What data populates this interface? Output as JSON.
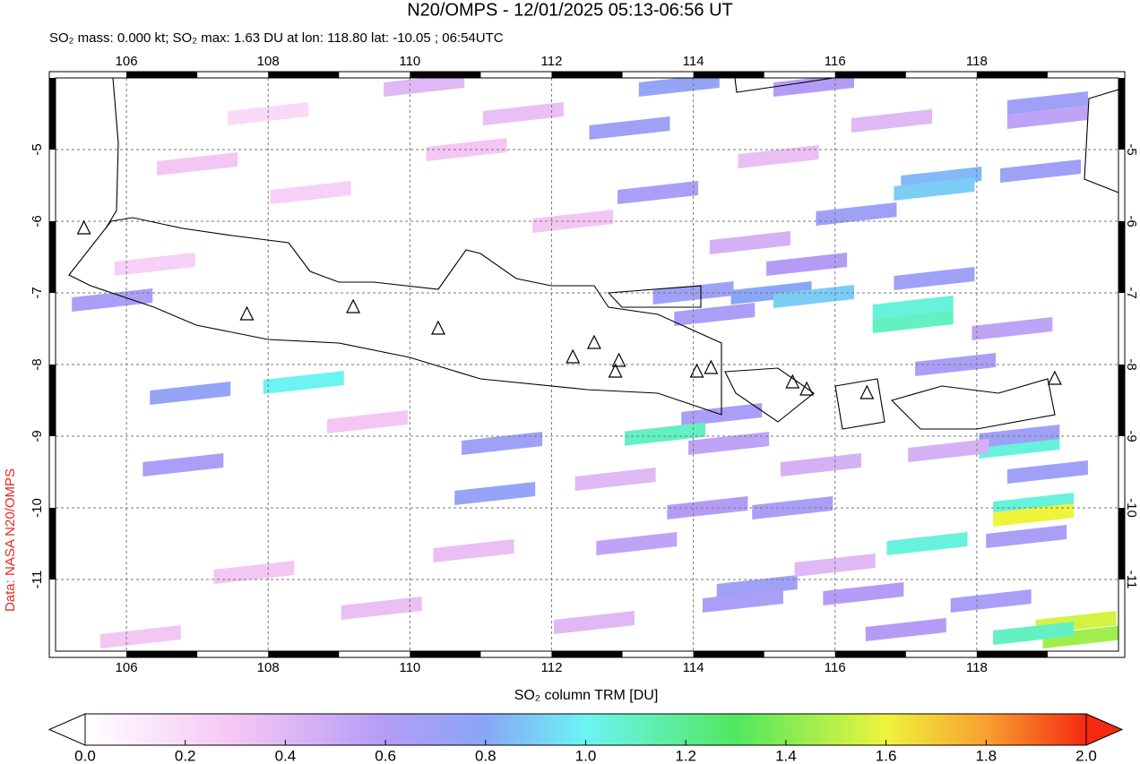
{
  "header": {
    "title": "N20/OMPS - 12/01/2025 05:13-06:56 UT",
    "subtitle": "SO₂ mass: 0.000 kt; SO₂ max: 1.63 DU at lon: 118.80 lat: -10.05 ; 06:54UTC"
  },
  "credit": "Data: NASA N20/OMPS",
  "map": {
    "xlim": [
      105,
      120
    ],
    "ylim": [
      -12,
      -4
    ],
    "xticks": [
      106,
      108,
      110,
      112,
      114,
      116,
      118
    ],
    "yticks": [
      -5,
      -6,
      -7,
      -8,
      -9,
      -10,
      -11
    ],
    "grid": true,
    "volcanoes": [
      {
        "lon": 105.4,
        "lat": -6.1
      },
      {
        "lon": 107.7,
        "lat": -7.3
      },
      {
        "lon": 109.2,
        "lat": -7.2
      },
      {
        "lon": 110.4,
        "lat": -7.5
      },
      {
        "lon": 112.3,
        "lat": -7.9
      },
      {
        "lon": 112.6,
        "lat": -7.7
      },
      {
        "lon": 112.95,
        "lat": -7.95
      },
      {
        "lon": 112.9,
        "lat": -8.1
      },
      {
        "lon": 114.05,
        "lat": -8.1
      },
      {
        "lon": 114.25,
        "lat": -8.05
      },
      {
        "lon": 115.4,
        "lat": -8.25
      },
      {
        "lon": 115.6,
        "lat": -8.35
      },
      {
        "lon": 116.45,
        "lat": -8.4
      },
      {
        "lon": 119.1,
        "lat": -8.2
      }
    ],
    "cells": [
      {
        "lon": 113.8,
        "lat": -4.1,
        "value": 0.75
      },
      {
        "lon": 115.7,
        "lat": -4.1,
        "value": 0.6
      },
      {
        "lon": 119.0,
        "lat": -4.35,
        "value": 0.7
      },
      {
        "lon": 119.0,
        "lat": -4.55,
        "value": 0.55
      },
      {
        "lon": 118.9,
        "lat": -5.3,
        "value": 0.7
      },
      {
        "lon": 117.5,
        "lat": -5.4,
        "value": 0.85
      },
      {
        "lon": 117.4,
        "lat": -5.55,
        "value": 0.9
      },
      {
        "lon": 116.3,
        "lat": -5.9,
        "value": 0.7
      },
      {
        "lon": 113.5,
        "lat": -5.6,
        "value": 0.65
      },
      {
        "lon": 113.1,
        "lat": -4.7,
        "value": 0.7
      },
      {
        "lon": 114.0,
        "lat": -7.0,
        "value": 0.7
      },
      {
        "lon": 114.3,
        "lat": -7.3,
        "value": 0.65
      },
      {
        "lon": 115.1,
        "lat": -7.0,
        "value": 0.8
      },
      {
        "lon": 115.7,
        "lat": -7.05,
        "value": 0.9
      },
      {
        "lon": 117.1,
        "lat": -7.2,
        "value": 1.05
      },
      {
        "lon": 117.1,
        "lat": -7.4,
        "value": 1.1
      },
      {
        "lon": 117.4,
        "lat": -6.8,
        "value": 0.7
      },
      {
        "lon": 118.5,
        "lat": -7.5,
        "value": 0.55
      },
      {
        "lon": 117.7,
        "lat": -8.0,
        "value": 0.65
      },
      {
        "lon": 115.6,
        "lat": -6.6,
        "value": 0.6
      },
      {
        "lon": 114.4,
        "lat": -8.7,
        "value": 0.65
      },
      {
        "lon": 113.6,
        "lat": -8.97,
        "value": 1.1
      },
      {
        "lon": 114.5,
        "lat": -9.1,
        "value": 0.55
      },
      {
        "lon": 111.3,
        "lat": -9.1,
        "value": 0.7
      },
      {
        "lon": 111.2,
        "lat": -9.8,
        "value": 0.75
      },
      {
        "lon": 114.2,
        "lat": -10.0,
        "value": 0.6
      },
      {
        "lon": 115.4,
        "lat": -10.0,
        "value": 0.65
      },
      {
        "lon": 118.6,
        "lat": -9.15,
        "value": 1.05
      },
      {
        "lon": 118.6,
        "lat": -9.0,
        "value": 0.7
      },
      {
        "lon": 118.8,
        "lat": -9.95,
        "value": 1.05
      },
      {
        "lon": 118.8,
        "lat": -10.1,
        "value": 1.6
      },
      {
        "lon": 119.0,
        "lat": -9.5,
        "value": 0.7
      },
      {
        "lon": 117.3,
        "lat": -10.5,
        "value": 1.05
      },
      {
        "lon": 118.7,
        "lat": -10.4,
        "value": 0.65
      },
      {
        "lon": 113.2,
        "lat": -10.5,
        "value": 0.55
      },
      {
        "lon": 114.9,
        "lat": -11.1,
        "value": 0.7
      },
      {
        "lon": 114.7,
        "lat": -11.3,
        "value": 0.65
      },
      {
        "lon": 116.4,
        "lat": -11.2,
        "value": 0.6
      },
      {
        "lon": 119.4,
        "lat": -11.6,
        "value": 1.55
      },
      {
        "lon": 119.5,
        "lat": -11.8,
        "value": 1.45
      },
      {
        "lon": 118.8,
        "lat": -11.75,
        "value": 1.1
      },
      {
        "lon": 118.2,
        "lat": -11.3,
        "value": 0.65
      },
      {
        "lon": 117.0,
        "lat": -11.7,
        "value": 0.6
      },
      {
        "lon": 108.5,
        "lat": -8.25,
        "value": 1.0
      },
      {
        "lon": 106.9,
        "lat": -8.4,
        "value": 0.75
      },
      {
        "lon": 106.8,
        "lat": -9.4,
        "value": 0.65
      },
      {
        "lon": 105.8,
        "lat": -7.1,
        "value": 0.65
      },
      {
        "lon": 110.2,
        "lat": -4.1,
        "value": 0.4
      },
      {
        "lon": 107.0,
        "lat": -5.2,
        "value": 0.3
      },
      {
        "lon": 108.6,
        "lat": -5.6,
        "value": 0.25
      },
      {
        "lon": 110.8,
        "lat": -5.0,
        "value": 0.3
      },
      {
        "lon": 111.6,
        "lat": -4.5,
        "value": 0.35
      },
      {
        "lon": 112.3,
        "lat": -6.0,
        "value": 0.3
      },
      {
        "lon": 109.4,
        "lat": -8.8,
        "value": 0.3
      },
      {
        "lon": 110.9,
        "lat": -10.6,
        "value": 0.35
      },
      {
        "lon": 107.8,
        "lat": -10.9,
        "value": 0.3
      },
      {
        "lon": 109.6,
        "lat": -11.4,
        "value": 0.35
      },
      {
        "lon": 112.6,
        "lat": -11.6,
        "value": 0.4
      },
      {
        "lon": 106.2,
        "lat": -11.8,
        "value": 0.3
      },
      {
        "lon": 115.8,
        "lat": -9.4,
        "value": 0.45
      },
      {
        "lon": 116.8,
        "lat": -4.6,
        "value": 0.4
      },
      {
        "lon": 115.2,
        "lat": -5.1,
        "value": 0.35
      },
      {
        "lon": 114.8,
        "lat": -6.3,
        "value": 0.45
      },
      {
        "lon": 112.9,
        "lat": -9.6,
        "value": 0.4
      },
      {
        "lon": 117.6,
        "lat": -9.2,
        "value": 0.45
      },
      {
        "lon": 116.0,
        "lat": -10.8,
        "value": 0.4
      },
      {
        "lon": 108.0,
        "lat": -4.5,
        "value": 0.2
      },
      {
        "lon": 106.4,
        "lat": -6.6,
        "value": 0.25
      }
    ]
  },
  "colorbar": {
    "label": "SO₂ column TRM [DU]",
    "lim": [
      0,
      2
    ],
    "ticks": [
      {
        "value": 0,
        "label": "0.0"
      },
      {
        "value": 0.2,
        "label": "0.2"
      },
      {
        "value": 0.4,
        "label": "0.4"
      },
      {
        "value": 0.6,
        "label": "0.6"
      },
      {
        "value": 0.8,
        "label": "0.8"
      },
      {
        "value": 1.0,
        "label": "1.0"
      },
      {
        "value": 1.2,
        "label": "1.2"
      },
      {
        "value": 1.4,
        "label": "1.4"
      },
      {
        "value": 1.6,
        "label": "1.6"
      },
      {
        "value": 1.8,
        "label": "1.8"
      },
      {
        "value": 2.0,
        "label": "2.0"
      }
    ],
    "colormap": [
      {
        "value": 0,
        "color": "#ffffff"
      },
      {
        "value": 0.3,
        "color": "#f4c6f4"
      },
      {
        "value": 0.6,
        "color": "#b49cf6"
      },
      {
        "value": 0.8,
        "color": "#8aa6f6"
      },
      {
        "value": 1.0,
        "color": "#6cf4f4"
      },
      {
        "value": 1.3,
        "color": "#50e860"
      },
      {
        "value": 1.6,
        "color": "#eef43c"
      },
      {
        "value": 1.8,
        "color": "#f8a030"
      },
      {
        "value": 2.0,
        "color": "#f42a10"
      }
    ]
  }
}
